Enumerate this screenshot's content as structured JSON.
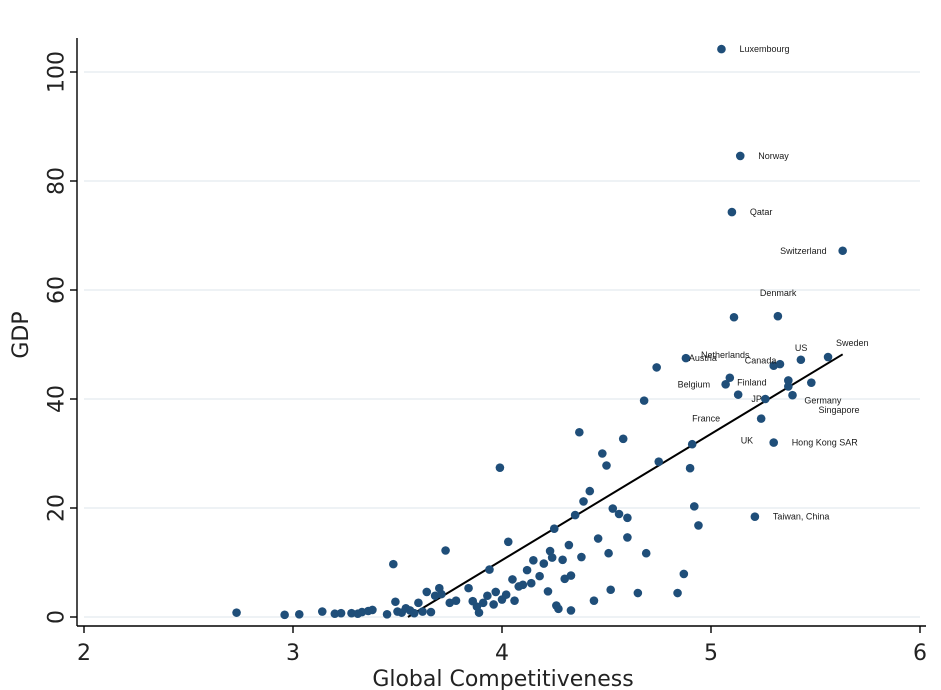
{
  "chart_data": {
    "type": "scatter",
    "title": "",
    "xlabel": "Global Competitiveness",
    "ylabel": "GDP",
    "xlim": [
      2,
      6
    ],
    "ylim": [
      0,
      100
    ],
    "xticks": [
      "2",
      "3",
      "4",
      "5",
      "6"
    ],
    "yticks": [
      "0",
      "20",
      "40",
      "60",
      "80",
      "100"
    ],
    "grid": true,
    "marker_color": "#1f4e79",
    "fit_color": "#000000",
    "grid_color": "#e3ebef",
    "points": [
      {
        "x": 2.73,
        "y": 0.8
      },
      {
        "x": 2.96,
        "y": 0.4
      },
      {
        "x": 3.03,
        "y": 0.5
      },
      {
        "x": 3.14,
        "y": 1.0
      },
      {
        "x": 3.2,
        "y": 0.6
      },
      {
        "x": 3.23,
        "y": 0.7
      },
      {
        "x": 3.28,
        "y": 0.7
      },
      {
        "x": 3.31,
        "y": 0.6
      },
      {
        "x": 3.33,
        "y": 0.9
      },
      {
        "x": 3.36,
        "y": 1.1
      },
      {
        "x": 3.38,
        "y": 1.3
      },
      {
        "x": 3.45,
        "y": 0.5
      },
      {
        "x": 3.48,
        "y": 9.7
      },
      {
        "x": 3.49,
        "y": 2.8
      },
      {
        "x": 3.5,
        "y": 1.0
      },
      {
        "x": 3.52,
        "y": 0.8
      },
      {
        "x": 3.54,
        "y": 1.6
      },
      {
        "x": 3.56,
        "y": 1.2
      },
      {
        "x": 3.58,
        "y": 0.7
      },
      {
        "x": 3.6,
        "y": 2.6
      },
      {
        "x": 3.62,
        "y": 1.0
      },
      {
        "x": 3.64,
        "y": 4.6
      },
      {
        "x": 3.66,
        "y": 0.9
      },
      {
        "x": 3.68,
        "y": 3.9
      },
      {
        "x": 3.7,
        "y": 5.3
      },
      {
        "x": 3.71,
        "y": 4.2
      },
      {
        "x": 3.73,
        "y": 12.2
      },
      {
        "x": 3.75,
        "y": 2.6
      },
      {
        "x": 3.78,
        "y": 3.0
      },
      {
        "x": 3.84,
        "y": 5.3
      },
      {
        "x": 3.86,
        "y": 2.9
      },
      {
        "x": 3.88,
        "y": 1.9
      },
      {
        "x": 3.89,
        "y": 0.8
      },
      {
        "x": 3.91,
        "y": 2.6
      },
      {
        "x": 3.93,
        "y": 3.9
      },
      {
        "x": 3.94,
        "y": 8.7
      },
      {
        "x": 3.96,
        "y": 2.3
      },
      {
        "x": 3.97,
        "y": 4.6
      },
      {
        "x": 3.99,
        "y": 27.4
      },
      {
        "x": 4.0,
        "y": 3.2
      },
      {
        "x": 4.02,
        "y": 4.1
      },
      {
        "x": 4.03,
        "y": 13.8
      },
      {
        "x": 4.05,
        "y": 6.9
      },
      {
        "x": 4.06,
        "y": 3.0
      },
      {
        "x": 4.08,
        "y": 5.6
      },
      {
        "x": 4.1,
        "y": 5.9
      },
      {
        "x": 4.12,
        "y": 8.6
      },
      {
        "x": 4.14,
        "y": 6.2
      },
      {
        "x": 4.15,
        "y": 10.4
      },
      {
        "x": 4.18,
        "y": 7.5
      },
      {
        "x": 4.2,
        "y": 9.8
      },
      {
        "x": 4.22,
        "y": 4.7
      },
      {
        "x": 4.23,
        "y": 12.1
      },
      {
        "x": 4.24,
        "y": 10.9
      },
      {
        "x": 4.25,
        "y": 16.2
      },
      {
        "x": 4.26,
        "y": 2.1
      },
      {
        "x": 4.27,
        "y": 1.5
      },
      {
        "x": 4.29,
        "y": 10.5
      },
      {
        "x": 4.3,
        "y": 7.0
      },
      {
        "x": 4.32,
        "y": 13.2
      },
      {
        "x": 4.33,
        "y": 7.6
      },
      {
        "x": 4.33,
        "y": 1.2
      },
      {
        "x": 4.35,
        "y": 18.7
      },
      {
        "x": 4.37,
        "y": 33.9
      },
      {
        "x": 4.38,
        "y": 11.0
      },
      {
        "x": 4.39,
        "y": 21.2
      },
      {
        "x": 4.42,
        "y": 23.1
      },
      {
        "x": 4.44,
        "y": 3.0
      },
      {
        "x": 4.46,
        "y": 14.4
      },
      {
        "x": 4.48,
        "y": 30.0
      },
      {
        "x": 4.5,
        "y": 27.8
      },
      {
        "x": 4.51,
        "y": 11.7
      },
      {
        "x": 4.52,
        "y": 5.0
      },
      {
        "x": 4.53,
        "y": 19.9
      },
      {
        "x": 4.56,
        "y": 18.9
      },
      {
        "x": 4.58,
        "y": 32.7
      },
      {
        "x": 4.6,
        "y": 18.2
      },
      {
        "x": 4.6,
        "y": 14.6
      },
      {
        "x": 4.65,
        "y": 4.4
      },
      {
        "x": 4.68,
        "y": 39.7
      },
      {
        "x": 4.69,
        "y": 11.7
      },
      {
        "x": 4.74,
        "y": 45.8
      },
      {
        "x": 4.75,
        "y": 28.5
      },
      {
        "x": 4.84,
        "y": 4.4
      },
      {
        "x": 4.87,
        "y": 7.9
      },
      {
        "x": 4.88,
        "y": 47.5
      },
      {
        "x": 4.9,
        "y": 27.3
      },
      {
        "x": 4.91,
        "y": 31.7
      },
      {
        "x": 4.92,
        "y": 20.3
      },
      {
        "x": 4.94,
        "y": 16.8
      },
      {
        "x": 5.05,
        "y": 104.2
      },
      {
        "x": 5.07,
        "y": 42.7
      },
      {
        "x": 5.09,
        "y": 43.9
      },
      {
        "x": 5.1,
        "y": 74.3
      },
      {
        "x": 5.11,
        "y": 55.0
      },
      {
        "x": 5.13,
        "y": 40.8
      },
      {
        "x": 5.14,
        "y": 84.6
      },
      {
        "x": 5.21,
        "y": 18.4
      },
      {
        "x": 5.24,
        "y": 36.4
      },
      {
        "x": 5.26,
        "y": 40.0
      },
      {
        "x": 5.3,
        "y": 32.0
      },
      {
        "x": 5.3,
        "y": 46.1
      },
      {
        "x": 5.32,
        "y": 55.2
      },
      {
        "x": 5.33,
        "y": 46.4
      },
      {
        "x": 5.37,
        "y": 43.4
      },
      {
        "x": 5.37,
        "y": 42.3
      },
      {
        "x": 5.39,
        "y": 40.7
      },
      {
        "x": 5.43,
        "y": 47.2
      },
      {
        "x": 5.48,
        "y": 43.0
      },
      {
        "x": 5.56,
        "y": 47.7
      },
      {
        "x": 5.63,
        "y": 67.2
      }
    ],
    "labels": [
      {
        "text": "Luxembourg",
        "x": 5.05,
        "y": 104.2
      },
      {
        "text": "Norway",
        "x": 5.14,
        "y": 84.6
      },
      {
        "text": "Qatar",
        "x": 5.1,
        "y": 74.3
      },
      {
        "text": "Switzerland",
        "x": 5.63,
        "y": 67.2
      },
      {
        "text": "Denmark",
        "x": 5.32,
        "y": 55.2
      },
      {
        "text": "Sweden",
        "x": 5.56,
        "y": 47.7
      },
      {
        "text": "US",
        "x": 5.43,
        "y": 47.2
      },
      {
        "text": "Netherlands",
        "x": 5.33,
        "y": 46.4
      },
      {
        "text": "Austria",
        "x": 4.88,
        "y": 47.5
      },
      {
        "text": "Canada",
        "x": 5.09,
        "y": 43.9
      },
      {
        "text": "Belgium",
        "x": 5.07,
        "y": 42.7
      },
      {
        "text": "Finland",
        "x": 5.13,
        "y": 40.8
      },
      {
        "text": "JP",
        "x": 5.26,
        "y": 40.0
      },
      {
        "text": "Singapore",
        "x": 5.39,
        "y": 40.7
      },
      {
        "text": "Germany",
        "x": 5.37,
        "y": 42.3
      },
      {
        "text": "France",
        "x": 5.24,
        "y": 36.4
      },
      {
        "text": "UK",
        "x": 5.3,
        "y": 32.0
      },
      {
        "text": "Hong Kong SAR",
        "x": 5.3,
        "y": 32.0
      },
      {
        "text": "Taiwan, China",
        "x": 5.21,
        "y": 18.4
      }
    ],
    "fit_line": [
      {
        "x": 3.55,
        "y": 0.0
      },
      {
        "x": 5.63,
        "y": 48.2
      }
    ]
  }
}
